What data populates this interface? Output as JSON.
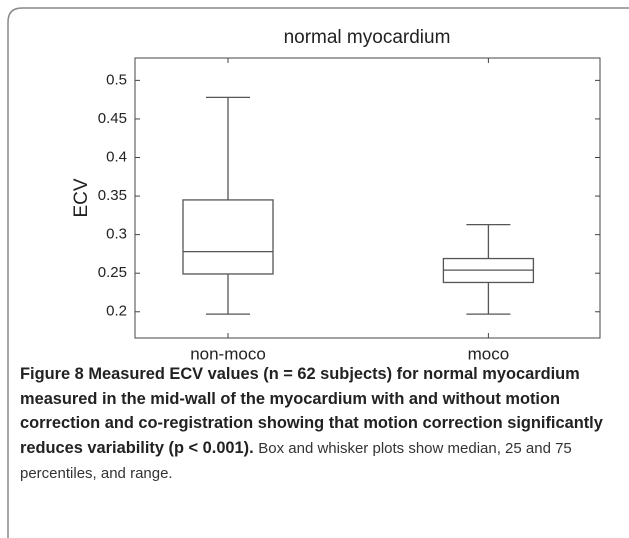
{
  "chart_data": {
    "type": "box",
    "title": "normal myocardium",
    "ylabel": "ECV",
    "categories": [
      "non-moco",
      "moco"
    ],
    "boxes": [
      {
        "min": 0.197,
        "q1": 0.249,
        "median": 0.278,
        "q3": 0.345,
        "max": 0.478
      },
      {
        "min": 0.197,
        "q1": 0.238,
        "median": 0.254,
        "q3": 0.269,
        "max": 0.313
      }
    ],
    "color": "#555555",
    "ylim": [
      0.166,
      0.529
    ],
    "yticks": [
      0.2,
      0.25,
      0.3,
      0.35,
      0.4,
      0.45,
      0.5
    ],
    "grid": false
  },
  "caption": {
    "label": "Figure 8",
    "bold_text": "Measured ECV values (n = 62 subjects) for normal myocardium measured in the mid-wall of the myocardium with and without motion correction and co-registration showing that motion correction significantly reduces variability (p < 0.001).",
    "text": "Box and whisker plots show median, 25 and 75 percentiles, and range."
  }
}
